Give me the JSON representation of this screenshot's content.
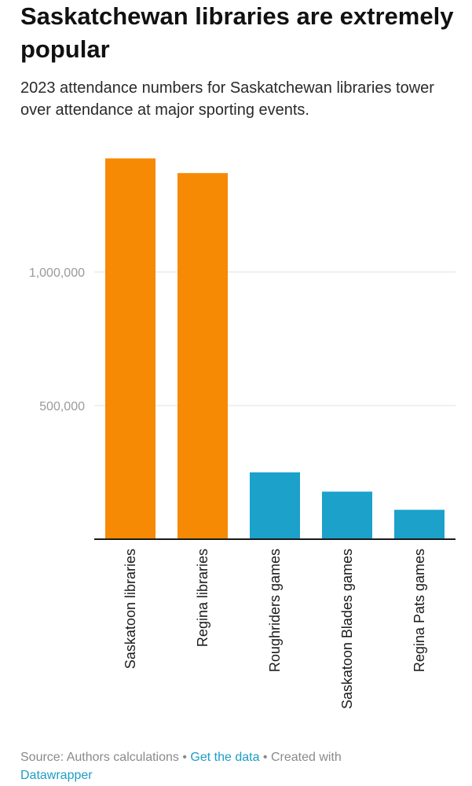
{
  "title": "Saskatchewan libraries are extremely popular",
  "subtitle": "2023 attendance numbers for Saskatchewan libraries tower over attendance at major sporting events.",
  "colors": {
    "libraries": "#f68a05",
    "sports": "#1ba1ca",
    "grid": "#e2e2e2",
    "axis": "#1a1a1a",
    "tick_text": "#9a9a9a",
    "link": "#1d9cc7"
  },
  "chart_data": {
    "type": "bar",
    "categories": [
      "Saskatoon libraries",
      "Regina libraries",
      "Roughriders games",
      "Saskatoon Blades games",
      "Regina Pats games"
    ],
    "values": [
      1425000,
      1370000,
      250000,
      178000,
      110000
    ],
    "bar_colors": [
      "#f68a05",
      "#f68a05",
      "#1ba1ca",
      "#1ba1ca",
      "#1ba1ca"
    ],
    "yticks": [
      500000,
      1000000
    ],
    "ytick_labels": [
      "500,000",
      "1,000,000"
    ],
    "ylim": [
      0,
      1500000
    ],
    "grid": true,
    "xlabel": "",
    "ylabel": ""
  },
  "footer": {
    "source": "Source: Authors calculations",
    "sep": "•",
    "get_data": "Get the data",
    "created_with": "Created with",
    "tool": "Datawrapper"
  }
}
